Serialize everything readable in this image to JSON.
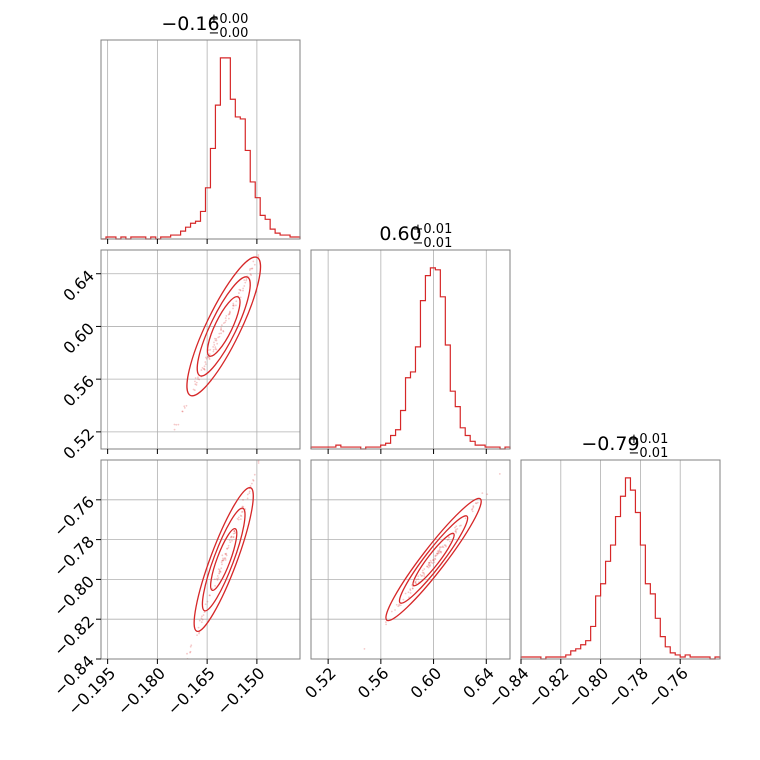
{
  "chart_data": {
    "type": "corner",
    "color": "#d62728",
    "parameters": [
      {
        "median": -0.16,
        "range": [
          -0.197,
          -0.137
        ],
        "title": {
          "main": "−0.16",
          "plus": "+0.00",
          "minus": "−0.00"
        }
      },
      {
        "median": 0.6,
        "range": [
          0.507,
          0.658
        ],
        "title": {
          "main": "0.60",
          "plus": "+0.01",
          "minus": "−0.01"
        }
      },
      {
        "median": -0.79,
        "range": [
          -0.84,
          -0.74
        ],
        "title": {
          "main": "−0.79",
          "plus": "+0.01",
          "minus": "−0.01"
        }
      }
    ],
    "ticks": [
      [
        {
          "v": -0.195,
          "label": "−0.195"
        },
        {
          "v": -0.18,
          "label": "−0.180"
        },
        {
          "v": -0.165,
          "label": "−0.165"
        },
        {
          "v": -0.15,
          "label": "−0.150"
        }
      ],
      [
        {
          "v": 0.52,
          "label": "0.52"
        },
        {
          "v": 0.56,
          "label": "0.56"
        },
        {
          "v": 0.6,
          "label": "0.60"
        },
        {
          "v": 0.64,
          "label": "0.64"
        }
      ],
      [
        {
          "v": -0.84,
          "label": "−0.84"
        },
        {
          "v": -0.82,
          "label": "−0.82"
        },
        {
          "v": -0.8,
          "label": "−0.80"
        },
        {
          "v": -0.78,
          "label": "−0.78"
        },
        {
          "v": -0.76,
          "label": "−0.76"
        }
      ]
    ],
    "histograms": [
      {
        "edges_range": [
          -0.197,
          -0.137
        ],
        "counts": [
          0,
          0.01,
          0.01,
          0,
          0.01,
          0,
          0.01,
          0.01,
          0.01,
          0,
          0.01,
          0,
          0.01,
          0.01,
          0.02,
          0.02,
          0.04,
          0.06,
          0.08,
          0.09,
          0.14,
          0.26,
          0.46,
          0.68,
          0.92,
          0.92,
          0.71,
          0.62,
          0.61,
          0.45,
          0.29,
          0.21,
          0.12,
          0.1,
          0.05,
          0.03,
          0.02,
          0.02,
          0.01,
          0.01
        ]
      },
      {
        "edges_range": [
          0.507,
          0.658
        ],
        "counts": [
          0.01,
          0.01,
          0.01,
          0.01,
          0.01,
          0.02,
          0.01,
          0.01,
          0.01,
          0.01,
          0,
          0.01,
          0.01,
          0.01,
          0.02,
          0.03,
          0.07,
          0.1,
          0.2,
          0.37,
          0.4,
          0.53,
          0.77,
          0.9,
          0.94,
          0.93,
          0.79,
          0.54,
          0.3,
          0.22,
          0.11,
          0.07,
          0.04,
          0.02,
          0.02,
          0.01,
          0.01,
          0.01,
          0,
          0.01
        ]
      },
      {
        "edges_range": [
          -0.84,
          -0.74
        ],
        "counts": [
          0.01,
          0.01,
          0.01,
          0.01,
          0,
          0.01,
          0.01,
          0.01,
          0.01,
          0.02,
          0.04,
          0.05,
          0.07,
          0.09,
          0.16,
          0.31,
          0.37,
          0.48,
          0.56,
          0.7,
          0.8,
          0.89,
          0.83,
          0.72,
          0.56,
          0.37,
          0.32,
          0.2,
          0.11,
          0.06,
          0.03,
          0.02,
          0.01,
          0.02,
          0.01,
          0.01,
          0.01,
          0.01,
          0,
          0.01
        ]
      }
    ],
    "pairs": [
      {
        "x_param": 0,
        "y_param": 1,
        "slope": 5.2,
        "minor_sigma_frac": 0.06
      },
      {
        "x_param": 0,
        "y_param": 2,
        "slope": 4.45,
        "minor_sigma_frac": 0.07
      },
      {
        "x_param": 1,
        "y_param": 2,
        "slope": 0.86,
        "minor_sigma_frac": 0.035
      }
    ],
    "grid": true,
    "legend": "none"
  }
}
